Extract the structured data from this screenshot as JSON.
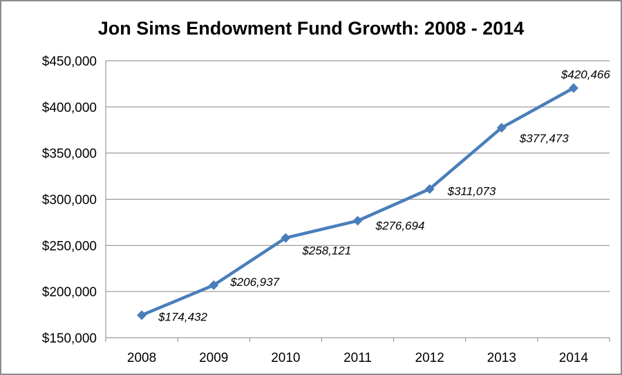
{
  "chart_data": {
    "type": "line",
    "title": "Jon Sims Endowment Fund  Growth: 2008 - 2014",
    "xlabel": "",
    "ylabel": "",
    "categories": [
      "2008",
      "2009",
      "2010",
      "2011",
      "2012",
      "2013",
      "2014"
    ],
    "series": [
      {
        "values": [
          174432,
          206937,
          258121,
          276694,
          311073,
          377473,
          420466
        ],
        "data_labels": [
          "$174,432",
          "$206,937",
          "$258,121",
          "$276,694",
          "$311,073",
          "$377,473",
          "$420,466"
        ]
      }
    ],
    "ylim": [
      150000,
      450000
    ],
    "y_ticks": [
      150000,
      200000,
      250000,
      300000,
      350000,
      400000,
      450000
    ],
    "y_tick_labels": [
      "$150,000",
      "$200,000",
      "$250,000",
      "$300,000",
      "$350,000",
      "$400,000",
      "$450,000"
    ],
    "grid": true,
    "legend": "none",
    "colors": {
      "line": "#4a7ebb",
      "grid": "#868686",
      "axis": "#868686"
    }
  }
}
